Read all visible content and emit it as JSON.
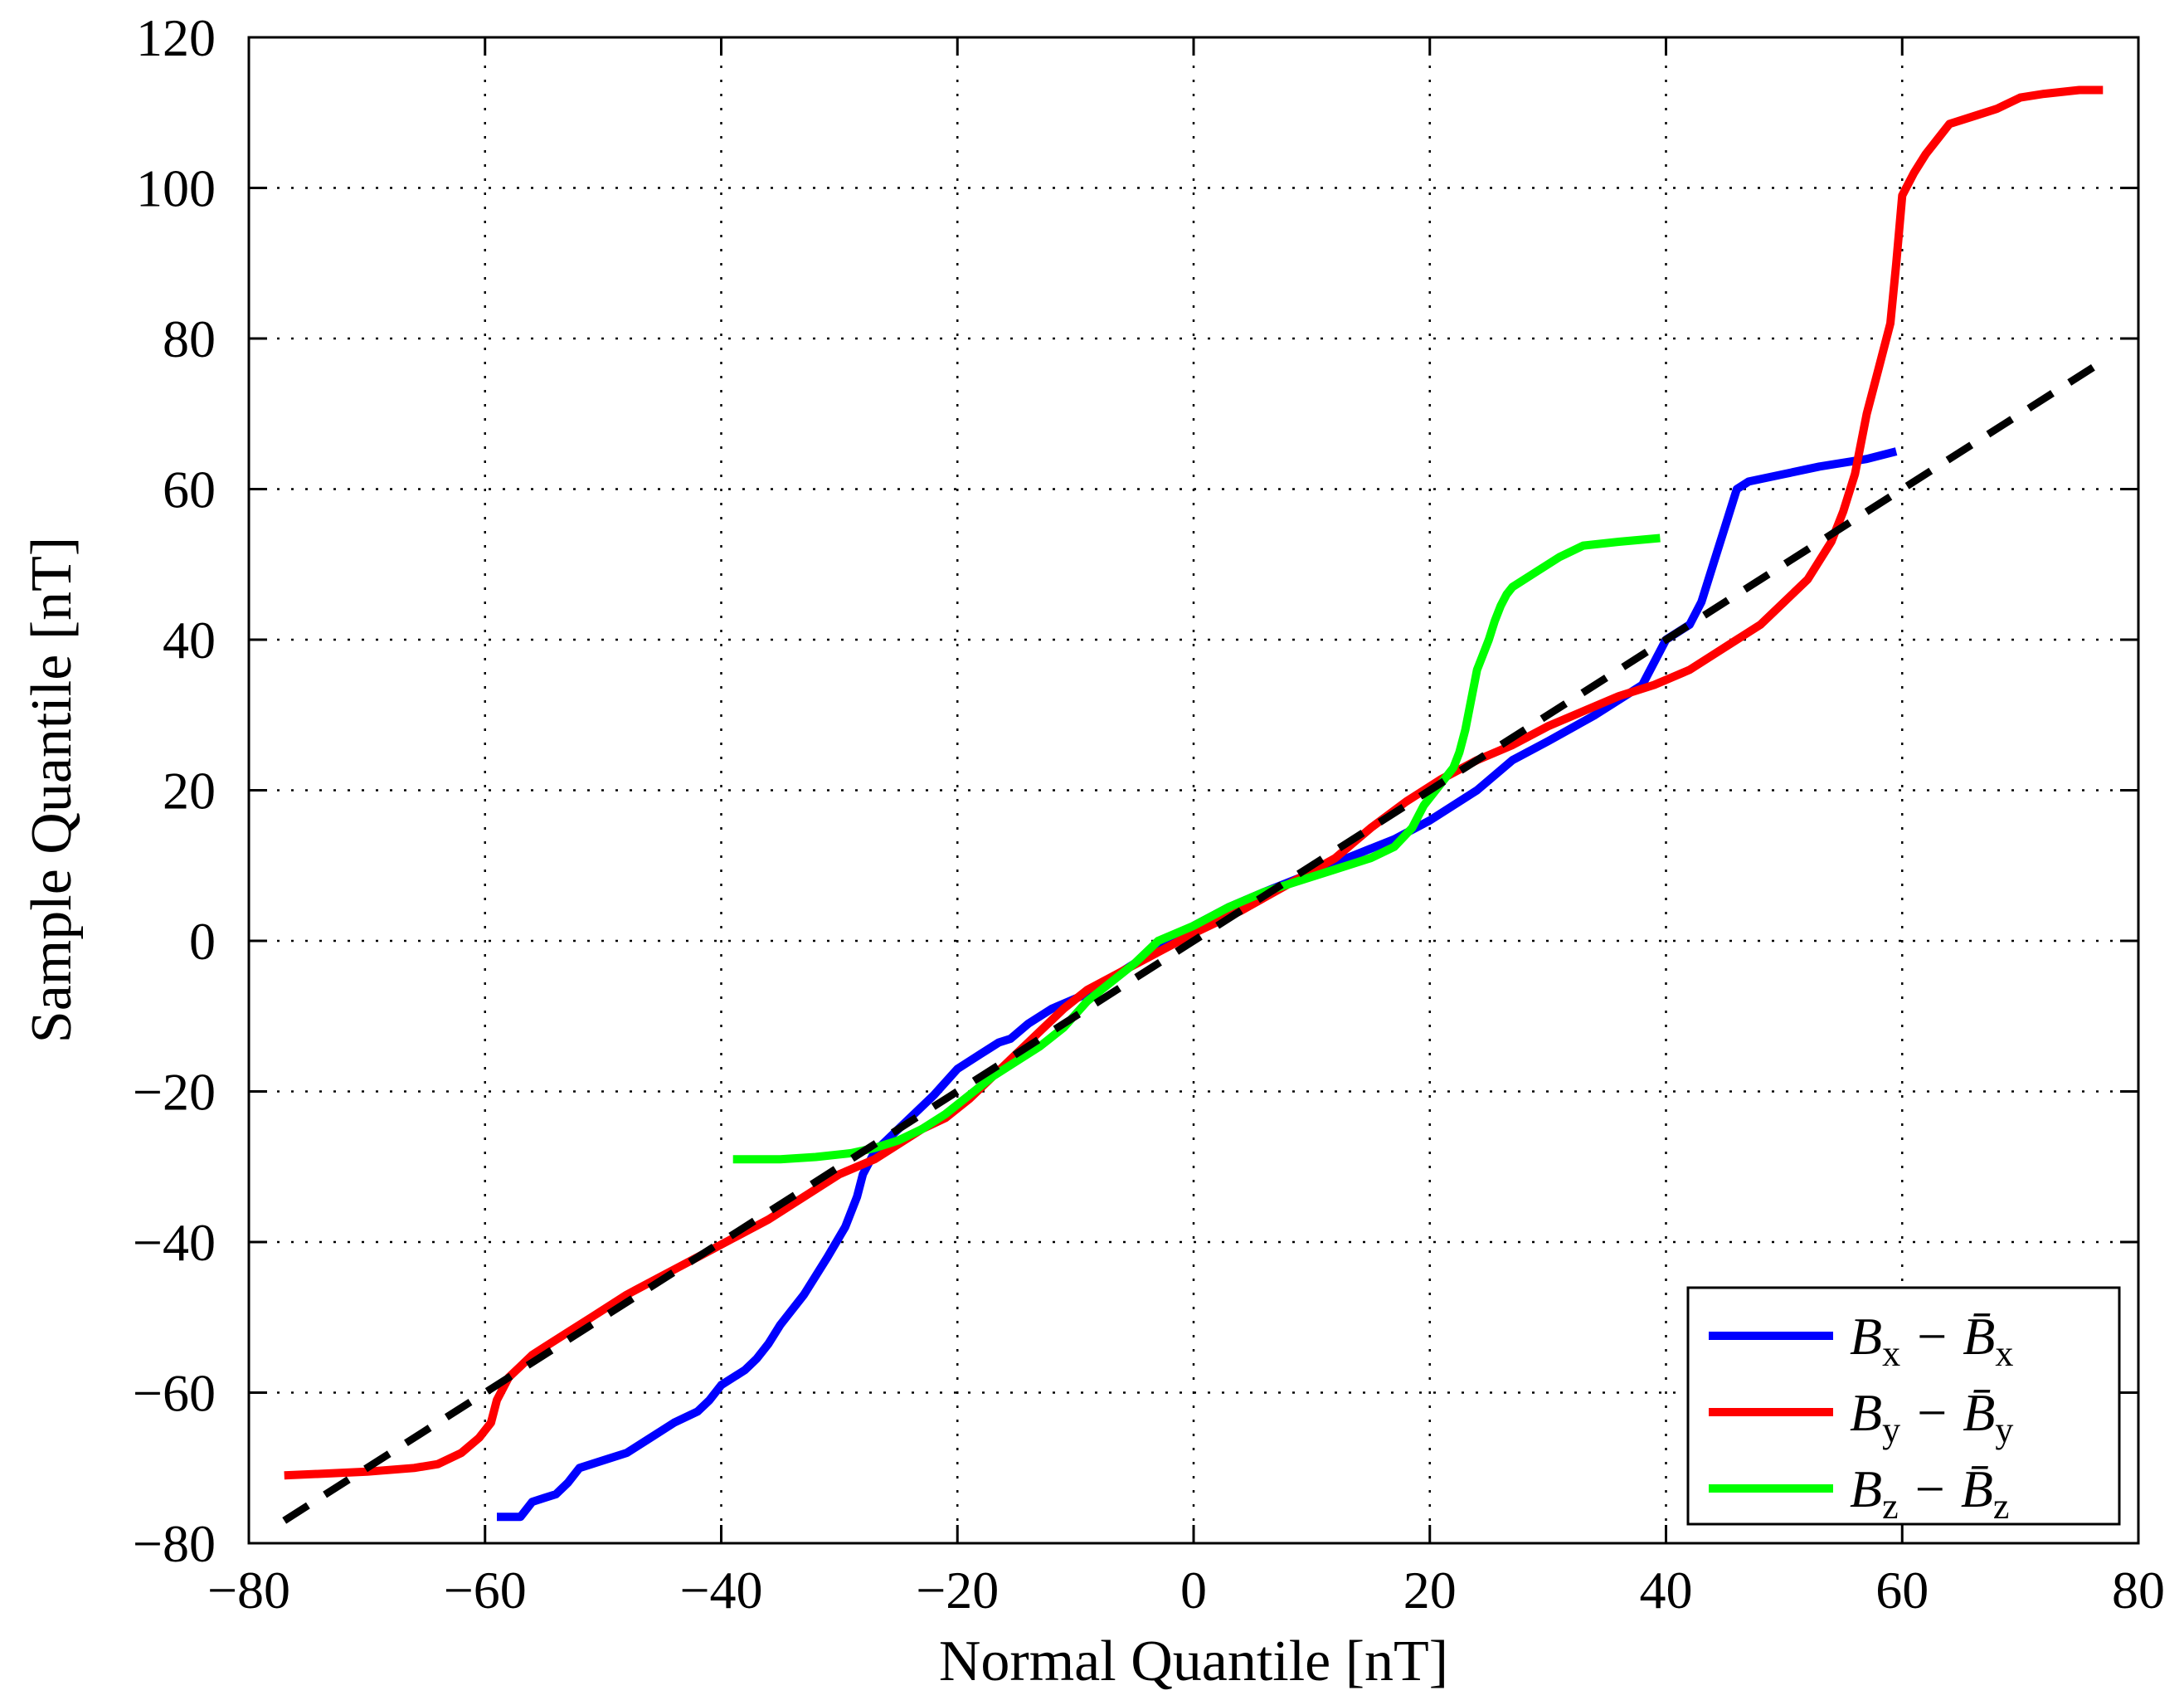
{
  "chart_data": {
    "type": "line",
    "title": "",
    "xlabel": "Normal Quantile [nT]",
    "ylabel": "Sample Quantile [nT]",
    "xlim": [
      -80,
      80
    ],
    "ylim": [
      -80,
      120
    ],
    "grid": true,
    "xticks": [
      -80,
      -60,
      -40,
      -20,
      0,
      20,
      40,
      60,
      80
    ],
    "yticks": [
      -80,
      -60,
      -40,
      -20,
      0,
      20,
      40,
      60,
      80,
      100,
      120
    ],
    "xtick_labels": [
      "−80",
      "−60",
      "−40",
      "−20",
      "0",
      "20",
      "40",
      "60",
      "80"
    ],
    "ytick_labels": [
      "−80",
      "−60",
      "−40",
      "−20",
      "0",
      "20",
      "40",
      "60",
      "80",
      "100",
      "120"
    ],
    "legend_position": "bottom-right",
    "reference_line": {
      "name": "reference",
      "color": "#000000",
      "style": "dashed",
      "x": [
        -77,
        77
      ],
      "y": [
        -77,
        77
      ]
    },
    "series": [
      {
        "name": "Bx",
        "legend": {
          "a": "B",
          "a_sub": "x",
          "op": "−",
          "b": "B̄",
          "b_sub": "x"
        },
        "color": "#0000ff",
        "x": [
          -59,
          -57,
          -56,
          -55,
          -54,
          -53,
          -52,
          -50,
          -48,
          -46,
          -45,
          -44,
          -42,
          -41,
          -40,
          -38,
          -37,
          -36,
          -35,
          -33,
          -31,
          -29.5,
          -28.5,
          -28,
          -27.5,
          -27,
          -26,
          -24,
          -22,
          -20,
          -18,
          -16.5,
          -15.5,
          -14,
          -12,
          -9,
          -6,
          -3,
          0,
          3,
          6,
          10,
          13,
          17,
          20,
          24,
          27,
          30,
          34,
          36,
          38,
          40,
          42,
          43,
          44,
          45,
          46,
          47,
          50,
          53,
          57,
          59.5
        ],
        "y": [
          -76.5,
          -76.5,
          -74.5,
          -74,
          -73.5,
          -72,
          -70,
          -69,
          -68,
          -66,
          -65,
          -64,
          -62.5,
          -61,
          -59,
          -57,
          -55.5,
          -53.5,
          -51,
          -47,
          -42,
          -38,
          -34,
          -31,
          -29.5,
          -28,
          -26.5,
          -23.5,
          -20.5,
          -17,
          -15,
          -13.5,
          -13,
          -11,
          -9,
          -7,
          -4,
          -1,
          2,
          4.5,
          6.5,
          9,
          11,
          13.5,
          16,
          20,
          24,
          26.5,
          30,
          32,
          34,
          40,
          42,
          45,
          50,
          55,
          60,
          61,
          62,
          63,
          64,
          65
        ]
      },
      {
        "name": "By",
        "legend": {
          "a": "B",
          "a_sub": "y",
          "op": "−",
          "b": "B̄",
          "b_sub": "y"
        },
        "color": "#ff0000",
        "x": [
          -77,
          -70,
          -66,
          -64,
          -62,
          -60.5,
          -59.5,
          -59,
          -58,
          -57,
          -56,
          -55,
          -53,
          -51,
          -48,
          -45,
          -42,
          -39,
          -36,
          -33,
          -30,
          -27,
          -25,
          -23,
          -21,
          -19,
          -17,
          -15,
          -13,
          -11,
          -9,
          -6,
          -3,
          0,
          4,
          8,
          12,
          15,
          18,
          21,
          24,
          27,
          30,
          33,
          36,
          39,
          42,
          44,
          46,
          48,
          50,
          52,
          54,
          55,
          56,
          56.5,
          57,
          58,
          59,
          59.5,
          60,
          61,
          62,
          63,
          64,
          66,
          68,
          70,
          72,
          75,
          77
        ],
        "y": [
          -71,
          -70.5,
          -70,
          -69.5,
          -68,
          -66,
          -64,
          -61,
          -58,
          -56.5,
          -55,
          -54,
          -52,
          -50,
          -47,
          -44.5,
          -42,
          -39.5,
          -37,
          -34,
          -31,
          -29,
          -27,
          -25,
          -23.5,
          -21,
          -18,
          -15,
          -12,
          -9,
          -6.5,
          -4,
          -1.5,
          1,
          4,
          7.5,
          11,
          15,
          18.5,
          21.5,
          24,
          26,
          28.5,
          30.5,
          32.5,
          34,
          36,
          38,
          40,
          42,
          45,
          48,
          53,
          57,
          62,
          66,
          70,
          76,
          82,
          90,
          99,
          102,
          104.5,
          106.5,
          108.5,
          109.5,
          110.5,
          112,
          112.5,
          113,
          113
        ]
      },
      {
        "name": "Bz",
        "legend": {
          "a": "B",
          "a_sub": "z",
          "op": "−",
          "b": "B̄",
          "b_sub": "z"
        },
        "color": "#00ff00",
        "x": [
          -39,
          -35,
          -32,
          -29,
          -27,
          -25,
          -23,
          -21,
          -19,
          -17,
          -15,
          -13,
          -11,
          -9,
          -7,
          -5,
          -3,
          0,
          3,
          6,
          9,
          12,
          15,
          17,
          18.5,
          19.5,
          21,
          22,
          22.5,
          23,
          23.5,
          24,
          24.5,
          25,
          25.5,
          26,
          26.5,
          27,
          29,
          31,
          33,
          36,
          39.5
        ],
        "y": [
          -29,
          -29,
          -28.7,
          -28.2,
          -27.5,
          -26.5,
          -25,
          -23,
          -20.5,
          -18,
          -16,
          -14,
          -11.5,
          -8,
          -5.5,
          -3,
          0,
          2,
          4.5,
          6.5,
          8,
          9.5,
          11,
          12.5,
          15,
          18,
          21,
          23,
          25,
          28,
          32,
          36,
          38,
          40,
          42.5,
          44.5,
          46,
          47,
          49,
          51,
          52.5,
          53,
          53.5
        ]
      }
    ]
  }
}
